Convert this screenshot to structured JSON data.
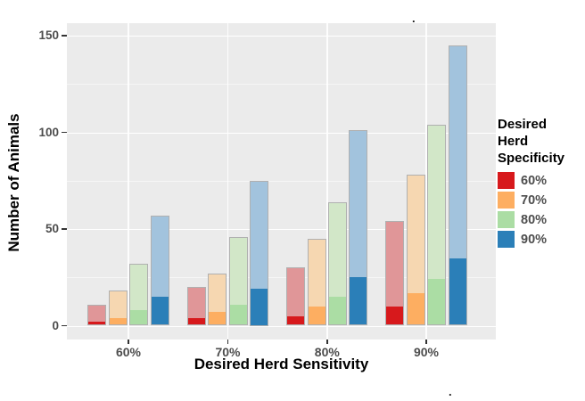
{
  "chart_data": {
    "type": "bar",
    "variant": "grouped bars with translucent total segment and solid lower segment (overlay, not stack)",
    "title": "",
    "xlabel": "Desired Herd Sensitivity",
    "ylabel": "Number of Animals",
    "categories": [
      "60%",
      "70%",
      "80%",
      "90%"
    ],
    "yticks": [
      0,
      50,
      100,
      150
    ],
    "yminor": [
      25,
      75,
      125
    ],
    "ylim": [
      0,
      156
    ],
    "grid": "white major and minor horizontal gridlines plus vertical gridline at each category center on gray panel",
    "legend_position": "right",
    "legend": {
      "title_lines": [
        "Desired",
        "Herd",
        "Specificity"
      ],
      "entries": [
        "60%",
        "70%",
        "80%",
        "90%"
      ]
    },
    "series": [
      {
        "name": "60%",
        "color": "#d7191c",
        "light_color": "#e09698",
        "totals": [
          11,
          20,
          30,
          54
        ],
        "solids": [
          2,
          4,
          5,
          10
        ]
      },
      {
        "name": "70%",
        "color": "#fdae61",
        "light_color": "#f6d7b1",
        "totals": [
          18,
          27,
          45,
          78
        ],
        "solids": [
          4,
          7,
          10,
          17
        ]
      },
      {
        "name": "80%",
        "color": "#abdda4",
        "light_color": "#d2e7c8",
        "totals": [
          32,
          46,
          64,
          104
        ],
        "solids": [
          8,
          11,
          15,
          24
        ]
      },
      {
        "name": "90%",
        "color": "#2b7fb8",
        "light_color": "#a2c3dd",
        "totals": [
          57,
          75,
          101,
          145
        ],
        "solids": [
          15,
          19,
          25,
          35
        ]
      }
    ]
  },
  "colors": {
    "panel_background": "#ebebeb",
    "gridline": "#ffffff",
    "tick": "#333333",
    "tick_label": "#4d4d4d",
    "axis_title": "#000000",
    "bar_border": "#b0b0b0"
  },
  "artifacts": {
    "top_dot": ".",
    "bottom_dot": "."
  }
}
